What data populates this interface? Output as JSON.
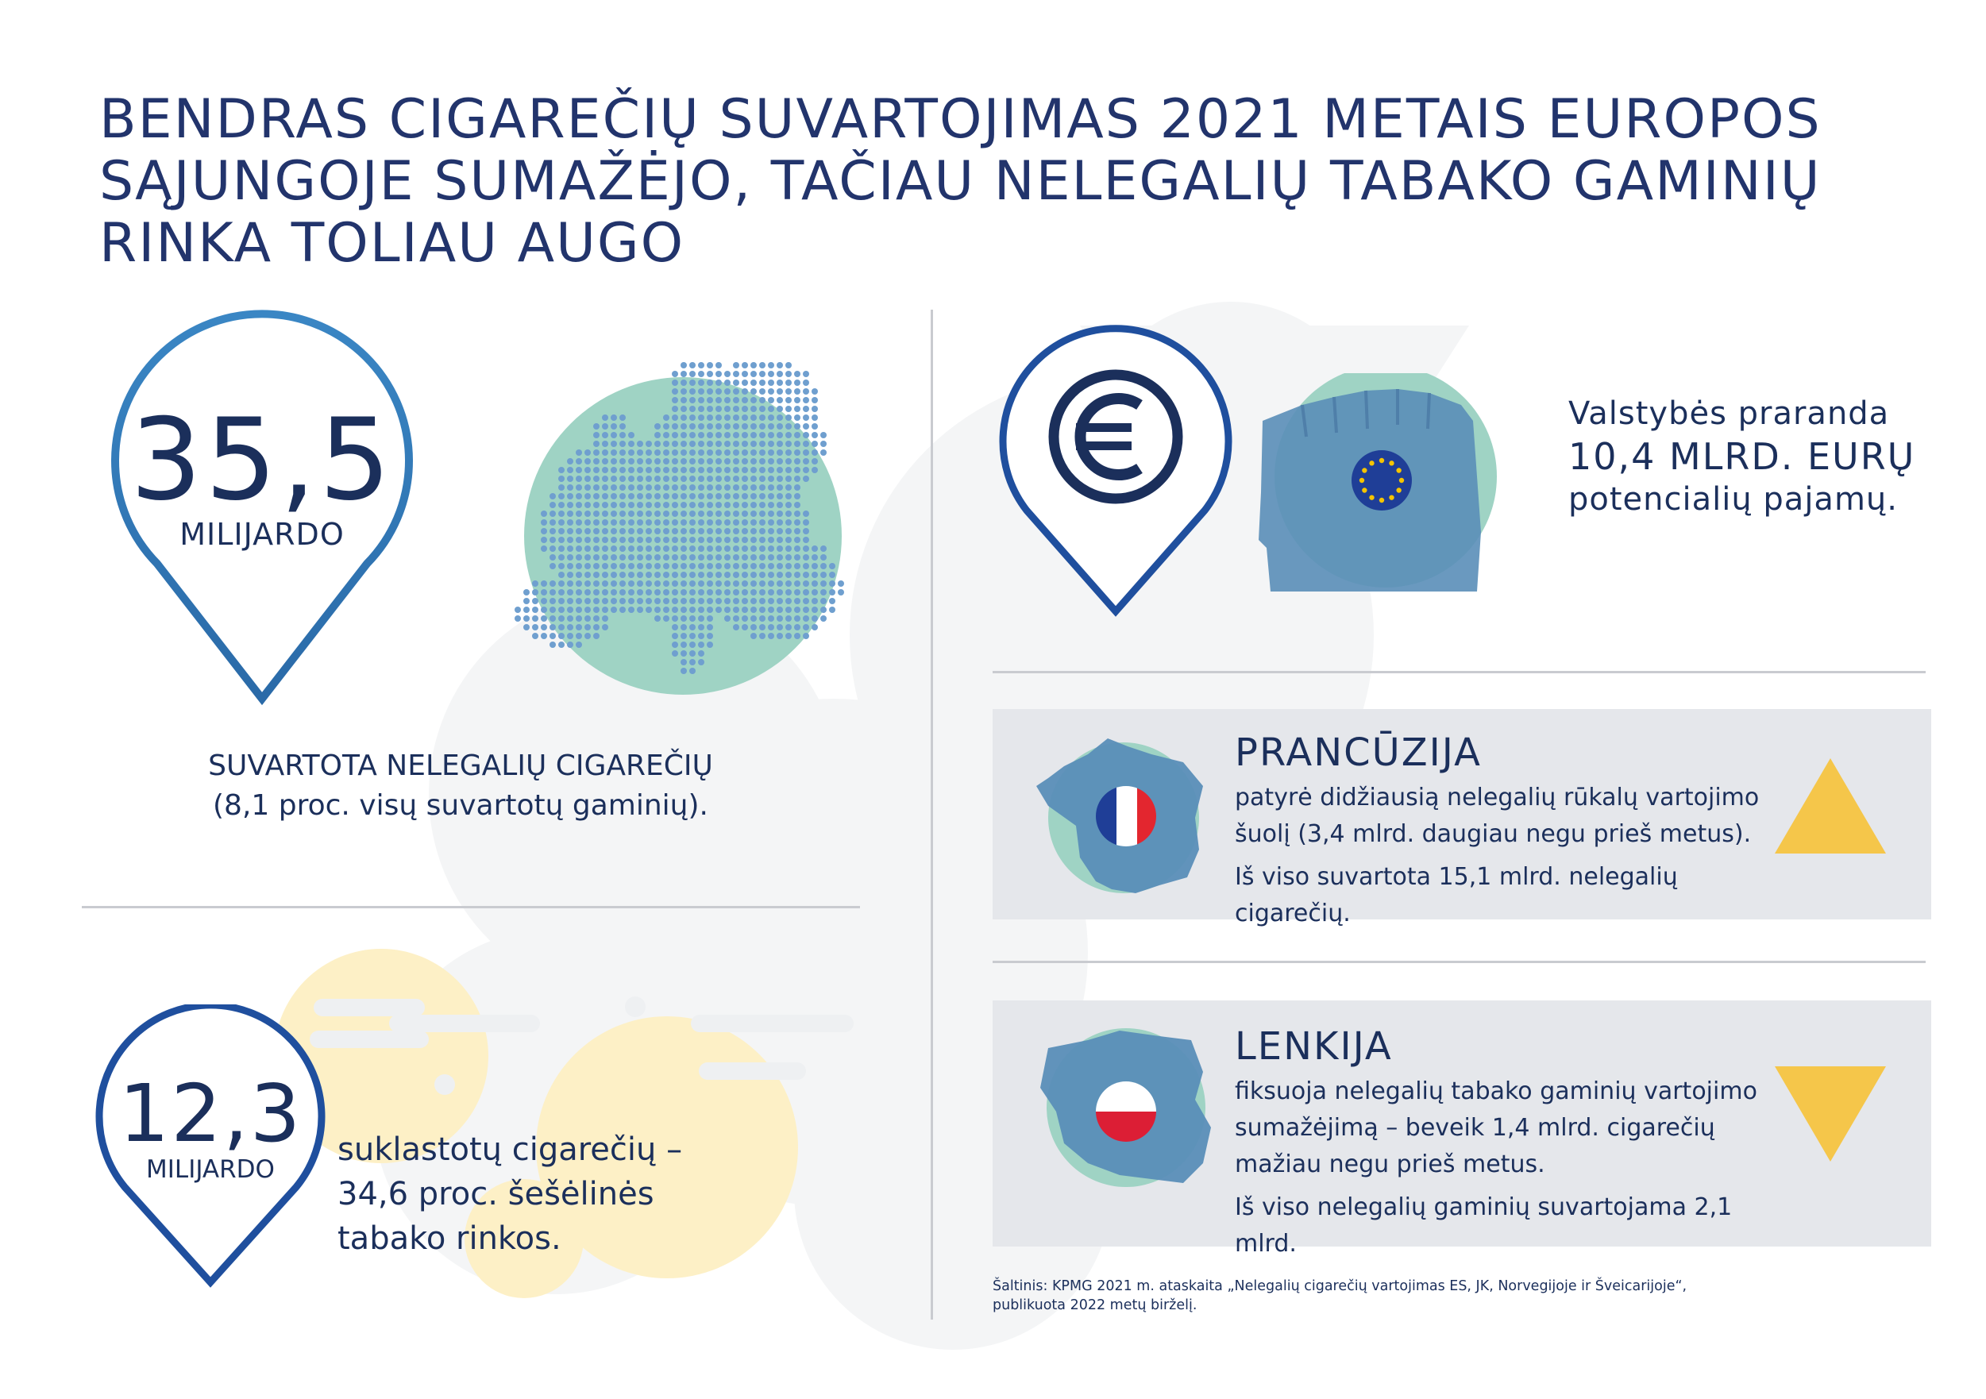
{
  "title": "BENDRAS CIGAREČIŲ SUVARTOJIMAS 2021 METAIS EUROPOS SĄJUNGOJE SUMAŽĖJO, TAČIAU NELEGALIŲ TABAKO GAMINIŲ RINKA TOLIAU AUGO",
  "stat_illegal": {
    "number": "35,5",
    "unit": "MILIJARDO",
    "caption_line1": "SUVARTOTA NELEGALIŲ CIGAREČIŲ",
    "caption_line2": "(8,1 proc. visų suvartotų gaminių)."
  },
  "stat_counterfeit": {
    "number": "12,3",
    "unit": "MILIJARDO",
    "caption_line1": "suklastotų cigarečių –",
    "caption_line2": "34,6 proc. šešėlinės",
    "caption_line3": "tabako rinkos."
  },
  "revenue_loss": {
    "line1": "Valstybės praranda",
    "line2": "10,4 MLRD. EURŲ",
    "line3": "potencialių pajamų."
  },
  "france": {
    "name": "PRANCŪZIJA",
    "desc_line1": "patyrė didžiausią nelegalių rūkalų vartojimo",
    "desc_line2": "šuolį (3,4 mlrd. daugiau negu prieš metus).",
    "desc_line3": "Iš viso suvartota 15,1 mlrd. nelegalių cigarečių.",
    "trend": "up"
  },
  "poland": {
    "name": "LENKIJA",
    "desc_line1": "fiksuoja nelegalių tabako gaminių vartojimo",
    "desc_line2": "sumažėjimą – beveik 1,4 mlrd. cigarečių",
    "desc_line3": "mažiau negu prieš metus.",
    "desc_line4": "Iš viso nelegalių gaminių suvartojama 2,1 mlrd.",
    "trend": "down"
  },
  "source": {
    "line1": "Šaltinis: KPMG 2021 m. ataskaita „Nelegalių cigarečių vartojimas ES, JK, Norvegijoje ir Šveicarijoje“,",
    "line2": "publikuota 2022 metų birželį."
  },
  "colors": {
    "navy": "#1b2f5b",
    "pin_blue": "#2e7bb8",
    "pin_dark": "#1f4f9e",
    "mint": "#9fd3c4",
    "steel": "#5f8fb5",
    "yellow_circle": "#fdf0c6",
    "arrow_yellow": "#f5c64a",
    "panel_gray": "#e5e7eb"
  },
  "icons": [
    "location-pin-icon",
    "euro-icon",
    "eu-flag-icon",
    "france-flag-icon",
    "poland-flag-icon",
    "trend-up-icon",
    "trend-down-icon"
  ]
}
